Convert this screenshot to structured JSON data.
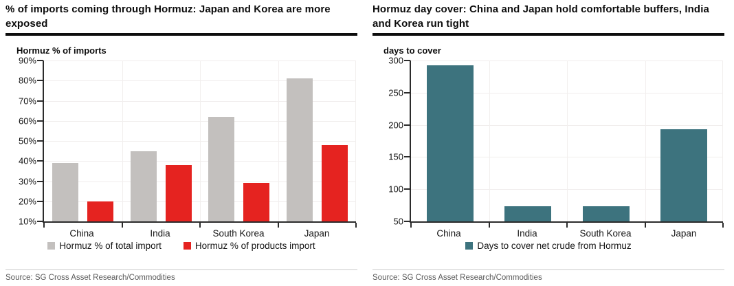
{
  "chart_data": [
    {
      "type": "bar",
      "title": "% of imports coming through Hormuz: Japan and Korea are more exposed",
      "ylabel": "Hormuz % of imports",
      "categories": [
        "China",
        "India",
        "South Korea",
        "Japan"
      ],
      "series": [
        {
          "name": "Hormuz % of total import",
          "color": "#c3c0be",
          "values": [
            39,
            45,
            62,
            81
          ]
        },
        {
          "name": "Hormuz % of products import",
          "color": "#e52320",
          "values": [
            20,
            38,
            29,
            48
          ]
        }
      ],
      "ylim": [
        10,
        90
      ],
      "ytick_step": 10,
      "ytick_suffix": "%",
      "grid": true,
      "legend_position": "bottom",
      "source": "Source: SG Cross Asset Research/Commodities"
    },
    {
      "type": "bar",
      "title": "Hormuz day cover: China and Japan hold comfortable buffers, India and Korea run tight",
      "ylabel": "days to cover",
      "categories": [
        "China",
        "India",
        "South Korea",
        "Japan"
      ],
      "series": [
        {
          "name": "Days to cover net crude from Hormuz",
          "color": "#3d737e",
          "values": [
            293,
            74,
            73,
            193
          ]
        }
      ],
      "ylim": [
        50,
        300
      ],
      "ytick_step": 50,
      "ytick_suffix": "",
      "grid": true,
      "legend_position": "bottom",
      "source": "Source: SG Cross Asset Research/Commodities"
    }
  ]
}
